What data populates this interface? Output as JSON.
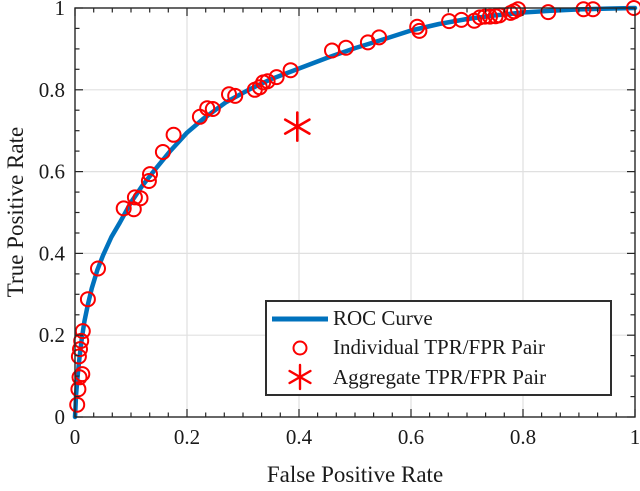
{
  "figure": {
    "background": "#ffffff"
  },
  "colors": {
    "curve_blue": "#0072BD",
    "marker_red": "#fb0000",
    "grid": "#e0e0e0",
    "axis": "#262626",
    "text": "#1a1a1a"
  },
  "chart_data": {
    "type": "line",
    "title": "",
    "xlabel": "False Positive Rate",
    "ylabel": "True Positive Rate",
    "xlim": [
      0,
      1
    ],
    "ylim": [
      0,
      1
    ],
    "xticks": [
      0,
      0.2,
      0.4,
      0.6,
      0.8,
      1
    ],
    "xtick_labels": [
      "0",
      "0.2",
      "0.4",
      "0.6",
      "0.8",
      "1"
    ],
    "yticks": [
      0,
      0.2,
      0.4,
      0.6,
      0.8,
      1
    ],
    "ytick_labels": [
      "0",
      "0.2",
      "0.4",
      "0.6",
      "0.8",
      "1"
    ],
    "x_minor_step": 0.03333,
    "y_minor_step": 0.05,
    "grid": true,
    "legend_position": "southeast-inside",
    "series": [
      {
        "name": "ROC Curve",
        "type": "line",
        "color": "#0072BD",
        "line_width": 4.5,
        "x": [
          0,
          0.002,
          0.005,
          0.008,
          0.012,
          0.017,
          0.023,
          0.03,
          0.04,
          0.05,
          0.065,
          0.08,
          0.1,
          0.12,
          0.14,
          0.17,
          0.2,
          0.23,
          0.27,
          0.31,
          0.35,
          0.4,
          0.45,
          0.5,
          0.55,
          0.6,
          0.65,
          0.7,
          0.75,
          0.8,
          0.85,
          0.9,
          0.95,
          1.0
        ],
        "y": [
          0,
          0.055,
          0.105,
          0.145,
          0.19,
          0.235,
          0.275,
          0.315,
          0.36,
          0.395,
          0.44,
          0.475,
          0.525,
          0.565,
          0.6,
          0.65,
          0.695,
          0.73,
          0.77,
          0.8,
          0.826,
          0.852,
          0.878,
          0.902,
          0.923,
          0.945,
          0.961,
          0.973,
          0.982,
          0.989,
          0.9935,
          0.9965,
          0.9985,
          1.0
        ]
      },
      {
        "name": "Individual TPR/FPR Pair",
        "type": "scatter",
        "marker": "circle",
        "color": "#fb0000",
        "marker_radius": 7,
        "points": [
          [
            0.004,
            0.03
          ],
          [
            0.006,
            0.068
          ],
          [
            0.008,
            0.097
          ],
          [
            0.013,
            0.105
          ],
          [
            0.007,
            0.148
          ],
          [
            0.009,
            0.166
          ],
          [
            0.011,
            0.186
          ],
          [
            0.014,
            0.21
          ],
          [
            0.023,
            0.288
          ],
          [
            0.041,
            0.363
          ],
          [
            0.087,
            0.51
          ],
          [
            0.105,
            0.508
          ],
          [
            0.107,
            0.537
          ],
          [
            0.117,
            0.535
          ],
          [
            0.132,
            0.577
          ],
          [
            0.134,
            0.594
          ],
          [
            0.157,
            0.648
          ],
          [
            0.176,
            0.69
          ],
          [
            0.223,
            0.734
          ],
          [
            0.236,
            0.755
          ],
          [
            0.246,
            0.753
          ],
          [
            0.275,
            0.789
          ],
          [
            0.286,
            0.785
          ],
          [
            0.321,
            0.8
          ],
          [
            0.33,
            0.806
          ],
          [
            0.336,
            0.818
          ],
          [
            0.344,
            0.821
          ],
          [
            0.36,
            0.831
          ],
          [
            0.385,
            0.848
          ],
          [
            0.459,
            0.896
          ],
          [
            0.484,
            0.903
          ],
          [
            0.523,
            0.916
          ],
          [
            0.543,
            0.928
          ],
          [
            0.611,
            0.954
          ],
          [
            0.615,
            0.944
          ],
          [
            0.668,
            0.968
          ],
          [
            0.69,
            0.971
          ],
          [
            0.713,
            0.969
          ],
          [
            0.723,
            0.977
          ],
          [
            0.732,
            0.979
          ],
          [
            0.741,
            0.979
          ],
          [
            0.751,
            0.98
          ],
          [
            0.758,
            0.982
          ],
          [
            0.778,
            0.988
          ],
          [
            0.784,
            0.992
          ],
          [
            0.791,
            0.997
          ],
          [
            0.845,
            0.99
          ],
          [
            0.908,
            0.997
          ],
          [
            0.925,
            0.997
          ],
          [
            0.998,
            1.0
          ]
        ]
      },
      {
        "name": "Aggregate TPR/FPR Pair",
        "type": "scatter",
        "marker": "asterisk",
        "color": "#fb0000",
        "marker_radius": 14,
        "points": [
          [
            0.397,
            0.71
          ]
        ]
      }
    ]
  },
  "legend": {
    "items": [
      {
        "label": "ROC Curve",
        "marker": "line",
        "color": "#0072BD"
      },
      {
        "label": "Individual TPR/FPR Pair",
        "marker": "circle",
        "color": "#fb0000"
      },
      {
        "label": "Aggregate TPR/FPR Pair",
        "marker": "asterisk",
        "color": "#fb0000"
      }
    ]
  }
}
